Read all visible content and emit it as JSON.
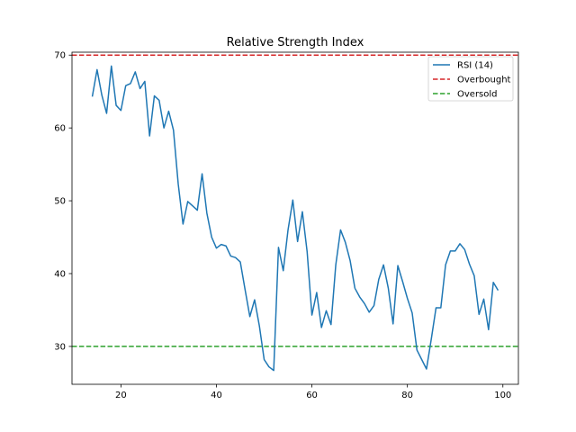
{
  "chart_data": {
    "type": "line",
    "title": "Relative Strength Index",
    "xlabel": "",
    "ylabel": "",
    "xlim": [
      9.75,
      103.25
    ],
    "ylim": [
      24.8,
      70.4
    ],
    "xticks": [
      20,
      40,
      60,
      80,
      100
    ],
    "yticks": [
      30,
      40,
      50,
      60,
      70
    ],
    "grid": false,
    "legend_position": "top-right",
    "series": [
      {
        "name": "RSI (14)",
        "color": "#1f77b4",
        "x": [
          14,
          15,
          16,
          17,
          18,
          19,
          20,
          21,
          22,
          23,
          24,
          25,
          26,
          27,
          28,
          29,
          30,
          31,
          32,
          33,
          34,
          35,
          36,
          37,
          38,
          39,
          40,
          41,
          42,
          43,
          44,
          45,
          46,
          47,
          48,
          49,
          50,
          51,
          52,
          53,
          54,
          55,
          56,
          57,
          58,
          59,
          60,
          61,
          62,
          63,
          64,
          65,
          66,
          67,
          68,
          69,
          70,
          71,
          72,
          73,
          74,
          75,
          76,
          77,
          78,
          79,
          80,
          81,
          82,
          83,
          84,
          85,
          86,
          87,
          88,
          89,
          90,
          91,
          92,
          93,
          94,
          95,
          96,
          97,
          98,
          99
        ],
        "y": [
          64.3,
          68.0,
          64.5,
          62.0,
          68.5,
          63.1,
          62.4,
          65.8,
          66.1,
          67.7,
          65.4,
          66.4,
          58.9,
          64.4,
          63.8,
          60.0,
          62.3,
          59.7,
          52.3,
          46.8,
          49.9,
          49.3,
          48.7,
          53.7,
          48.3,
          45.0,
          43.5,
          44.0,
          43.8,
          42.4,
          42.2,
          41.6,
          37.8,
          34.1,
          36.4,
          32.8,
          28.2,
          27.2,
          26.7,
          43.6,
          40.4,
          46.0,
          50.1,
          44.4,
          48.5,
          43.0,
          34.3,
          37.4,
          32.6,
          34.9,
          33.0,
          41.2,
          46.0,
          44.3,
          41.8,
          38.0,
          36.8,
          35.9,
          34.7,
          35.6,
          39.2,
          41.2,
          38.0,
          33.1,
          41.1,
          38.9,
          36.6,
          34.6,
          29.5,
          28.2,
          26.9,
          31.0,
          35.3,
          35.3,
          41.2,
          43.1,
          43.1,
          44.1,
          43.3,
          41.3,
          39.7,
          34.4,
          36.5,
          32.3,
          38.8,
          37.7
        ]
      }
    ],
    "reference_lines": [
      {
        "name": "Overbought",
        "y": 70,
        "color": "#d62728",
        "style": "dashed"
      },
      {
        "name": "Oversold",
        "y": 30,
        "color": "#2ca02c",
        "style": "dashed"
      }
    ]
  }
}
